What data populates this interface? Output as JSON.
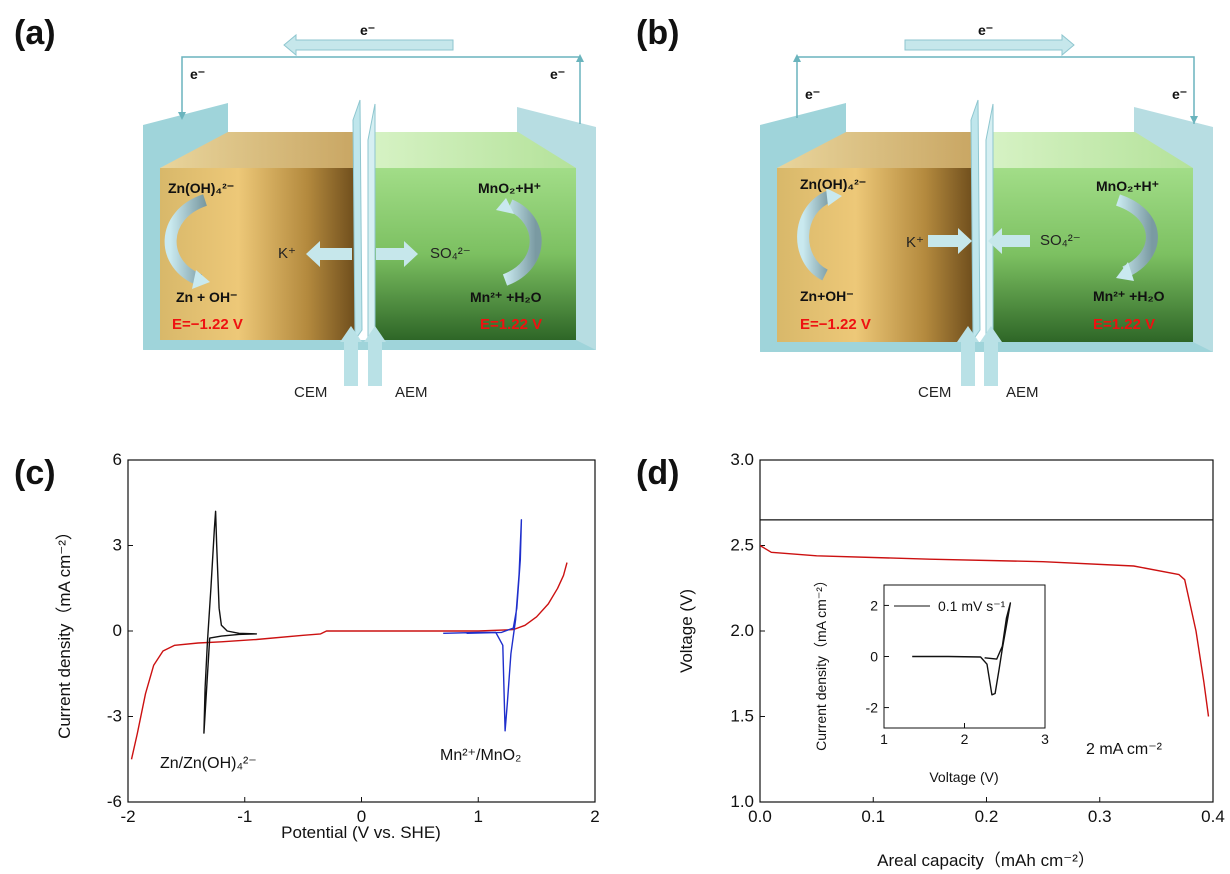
{
  "panels": {
    "a": {
      "label": "(a)",
      "electron_top": "e⁻",
      "electron_left": "e⁻",
      "electron_right": "e⁻",
      "left_top": "Zn(OH)₄²⁻",
      "left_bottom": "Zn + OH⁻",
      "left_E": "E=−1.22 V",
      "right_top": "MnO₂+H⁺",
      "right_bottom": "Mn²⁺ +H₂O",
      "right_E": "E=1.22 V",
      "ion_left": "K⁺",
      "ion_right": "SO₄²⁻",
      "membrane_left": "CEM",
      "membrane_right": "AEM"
    },
    "b": {
      "label": "(b)",
      "electron_top": "e⁻",
      "electron_left": "e⁻",
      "electron_right": "e⁻",
      "left_top": "Zn(OH)₄²⁻",
      "left_bottom": "Zn+OH⁻",
      "left_E": "E=−1.22 V",
      "right_top": "MnO₂+H⁺",
      "right_bottom": "Mn²⁺ +H₂O",
      "right_E": "E=1.22 V",
      "ion_left": "K⁺",
      "ion_right": "SO₄²⁻",
      "membrane_left": "CEM",
      "membrane_right": "AEM"
    },
    "c": {
      "label": "(c)",
      "annot_left": "Zn/Zn(OH)₄²⁻",
      "annot_right": "Mn²⁺/MnO₂"
    },
    "d": {
      "label": "(d)",
      "annot_rate": "2 mA cm⁻²",
      "inset_legend": "0.1 mV s⁻¹"
    }
  },
  "chart_data": [
    {
      "id": "c",
      "type": "line",
      "xlabel": "Potential (V vs. SHE)",
      "ylabel": "Current density（mA cm⁻²）",
      "xlim": [
        -2,
        2
      ],
      "ylim": [
        -6,
        6
      ],
      "xticks": [
        "-2",
        "-1",
        "0",
        "1",
        "2"
      ],
      "yticks": [
        "-6",
        "-3",
        "0",
        "3",
        "6"
      ],
      "series": [
        {
          "color": "#cc1111",
          "points": [
            [
              -1.97,
              -4.5
            ],
            [
              -1.92,
              -3.6
            ],
            [
              -1.85,
              -2.2
            ],
            [
              -1.78,
              -1.2
            ],
            [
              -1.7,
              -0.7
            ],
            [
              -1.6,
              -0.5
            ],
            [
              -1.4,
              -0.42
            ],
            [
              -1.2,
              -0.38
            ],
            [
              -0.9,
              -0.3
            ],
            [
              -0.5,
              -0.15
            ],
            [
              -0.35,
              -0.1
            ],
            [
              -0.3,
              0.0
            ],
            [
              0,
              0.0
            ],
            [
              0.5,
              0.0
            ],
            [
              1.0,
              0.0
            ],
            [
              1.3,
              0.05
            ],
            [
              1.4,
              0.2
            ],
            [
              1.5,
              0.5
            ],
            [
              1.6,
              0.95
            ],
            [
              1.68,
              1.5
            ],
            [
              1.73,
              1.95
            ],
            [
              1.76,
              2.4
            ]
          ]
        },
        {
          "color": "#111111",
          "points": [
            [
              -1.35,
              -3.6
            ],
            [
              -1.34,
              -2.0
            ],
            [
              -1.32,
              -0.4
            ],
            [
              -1.29,
              1.5
            ],
            [
              -1.26,
              3.6
            ],
            [
              -1.25,
              4.2
            ],
            [
              -1.24,
              3.0
            ],
            [
              -1.22,
              0.8
            ],
            [
              -1.2,
              0.2
            ],
            [
              -1.15,
              0.0
            ],
            [
              -1.05,
              -0.08
            ],
            [
              -0.9,
              -0.1
            ],
            [
              -1.05,
              -0.12
            ],
            [
              -1.2,
              -0.18
            ],
            [
              -1.3,
              -0.25
            ],
            [
              -1.35,
              -3.6
            ]
          ]
        },
        {
          "color": "#1f2fcc",
          "points": [
            [
              0.7,
              -0.08
            ],
            [
              1.0,
              -0.05
            ],
            [
              1.15,
              -0.05
            ],
            [
              1.21,
              -0.5
            ],
            [
              1.23,
              -3.5
            ],
            [
              1.25,
              -2.5
            ],
            [
              1.28,
              -0.8
            ],
            [
              1.32,
              0.4
            ],
            [
              1.35,
              2.0
            ],
            [
              1.37,
              3.9
            ],
            [
              1.36,
              2.5
            ],
            [
              1.33,
              0.8
            ],
            [
              1.3,
              0.1
            ],
            [
              1.2,
              -0.05
            ],
            [
              0.9,
              -0.08
            ]
          ]
        }
      ]
    },
    {
      "id": "d",
      "type": "line",
      "xlabel": "Areal capacity（mAh cm⁻²）",
      "ylabel": "Voltage (V)",
      "xlim": [
        0,
        0.4
      ],
      "ylim": [
        1.0,
        3.0
      ],
      "xticks": [
        "0.0",
        "0.1",
        "0.2",
        "0.3",
        "0.4"
      ],
      "yticks": [
        "1.0",
        "1.5",
        "2.0",
        "2.5",
        "3.0"
      ],
      "reference_line": 2.65,
      "series": [
        {
          "color": "#cc1111",
          "points": [
            [
              0.0,
              2.5
            ],
            [
              0.01,
              2.46
            ],
            [
              0.05,
              2.44
            ],
            [
              0.15,
              2.42
            ],
            [
              0.25,
              2.405
            ],
            [
              0.33,
              2.38
            ],
            [
              0.37,
              2.33
            ],
            [
              0.375,
              2.3
            ],
            [
              0.385,
              2.0
            ],
            [
              0.392,
              1.7
            ],
            [
              0.396,
              1.5
            ]
          ]
        }
      ],
      "inset": {
        "xlabel": "Voltage (V)",
        "ylabel": "Current density（mA cm⁻²）",
        "xlim": [
          1,
          3
        ],
        "ylim": [
          -2.8,
          2.8
        ],
        "xticks": [
          "1",
          "2",
          "3"
        ],
        "yticks": [
          "-2",
          "0",
          "2"
        ],
        "series": [
          {
            "name": "0.1 mV s⁻¹",
            "color": "#111111",
            "points": [
              [
                1.35,
                0.0
              ],
              [
                1.8,
                0.0
              ],
              [
                2.2,
                -0.02
              ],
              [
                2.28,
                -0.3
              ],
              [
                2.34,
                -1.5
              ],
              [
                2.38,
                -1.45
              ],
              [
                2.43,
                -0.5
              ],
              [
                2.47,
                0.3
              ],
              [
                2.52,
                1.2
              ],
              [
                2.57,
                2.1
              ],
              [
                2.52,
                1.5
              ],
              [
                2.47,
                0.4
              ],
              [
                2.4,
                -0.1
              ],
              [
                2.25,
                -0.05
              ]
            ]
          }
        ]
      }
    }
  ]
}
